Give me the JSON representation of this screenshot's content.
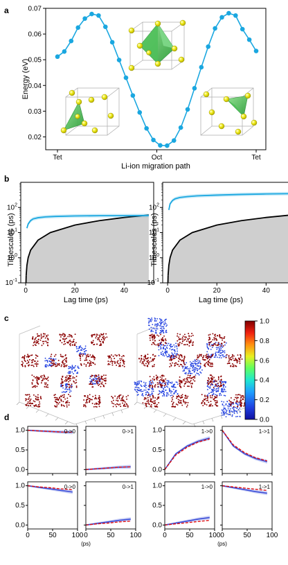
{
  "panels": {
    "a": "a",
    "b": "b",
    "c": "c",
    "d": "d"
  },
  "chart_data": [
    {
      "panel": "a",
      "type": "line",
      "xlabel": "Li-ion migration path",
      "ylabel": "Energy (eV)",
      "ylim": [
        0.015,
        0.07
      ],
      "yticks": [
        "0.02",
        "0.03",
        "0.04",
        "0.05",
        "0.06",
        "0.07"
      ],
      "xticks": [
        "Tet",
        "Oct",
        "Tet"
      ],
      "series": [
        {
          "color": "#1aa7e0",
          "values": [
            0.0512,
            0.0532,
            0.0573,
            0.0625,
            0.066,
            0.0678,
            0.0672,
            0.0628,
            0.0568,
            0.0499,
            0.043,
            0.0361,
            0.0295,
            0.0233,
            0.0188,
            0.0167,
            0.0166,
            0.0186,
            0.0236,
            0.0307,
            0.0389,
            0.0471,
            0.0551,
            0.0622,
            0.0665,
            0.0681,
            0.0672,
            0.0619,
            0.0578,
            0.0534
          ]
        }
      ],
      "insets": [
        "tetrahedral-site-left",
        "octahedral-site",
        "tetrahedral-site-right"
      ]
    },
    {
      "panel": "b-left",
      "type": "line",
      "xlabel": "Lag time (ps)",
      "ylabel": "Timescales (ps)",
      "yscale": "log",
      "ylim": [
        0.1,
        1000
      ],
      "xlim": [
        -2,
        52
      ],
      "xticks": [
        "0",
        "20",
        "40"
      ],
      "yticks": [
        "10^-1",
        "10^0",
        "10^1",
        "10^2"
      ],
      "series": [
        {
          "color": "#1aa7e0",
          "x": [
            0.5,
            1,
            2,
            3,
            5,
            8,
            12,
            20,
            30,
            40,
            50
          ],
          "values": [
            15,
            22,
            30,
            35,
            39,
            42,
            44,
            46,
            47,
            47,
            48
          ]
        },
        {
          "color": "#000000",
          "fill": "#cfcfcf",
          "x": [
            0.2,
            0.5,
            1,
            2,
            5,
            10,
            20,
            30,
            40,
            50
          ],
          "values": [
            0.2,
            0.5,
            1,
            2,
            5,
            10,
            20,
            30,
            40,
            50
          ]
        }
      ]
    },
    {
      "panel": "b-right",
      "type": "line",
      "xlabel": "Lag time (ps)",
      "ylabel": "Timescales (ps)",
      "yscale": "log",
      "ylim": [
        0.1,
        1000
      ],
      "xlim": [
        -2,
        52
      ],
      "xticks": [
        "0",
        "20",
        "40"
      ],
      "yticks": [
        "10^-1",
        "10^0",
        "10^1",
        "10^2"
      ],
      "series": [
        {
          "color": "#1aa7e0",
          "x": [
            0.5,
            1,
            2,
            3,
            5,
            8,
            12,
            20,
            30,
            40,
            50
          ],
          "values": [
            80,
            140,
            190,
            220,
            250,
            270,
            290,
            310,
            330,
            345,
            355
          ]
        },
        {
          "color": "#000000",
          "fill": "#cfcfcf",
          "x": [
            0.2,
            0.5,
            1,
            2,
            5,
            10,
            20,
            30,
            40,
            50
          ],
          "values": [
            0.2,
            0.5,
            1,
            2,
            5,
            10,
            20,
            30,
            40,
            50
          ]
        }
      ]
    },
    {
      "panel": "c",
      "type": "heatmap",
      "colorbar": {
        "min": 0.0,
        "max": 1.0,
        "ticks": [
          "0.0",
          "0.2",
          "0.4",
          "0.6",
          "0.8",
          "1.0"
        ]
      },
      "state_colors": {
        "high": "#8b0000",
        "low": "#1f3fe0"
      }
    },
    {
      "panel": "d",
      "type": "line",
      "xlabel": "(ps)",
      "xticks": [
        "0",
        "50",
        "100"
      ],
      "yticks": [
        "0.0",
        "0.5",
        "1.0"
      ],
      "subplots": [
        {
          "label": "0->0",
          "model": [
            1.0,
            0.985,
            0.97,
            0.955,
            0.95
          ],
          "ref": [
            1.0,
            0.985,
            0.97,
            0.955,
            0.95
          ]
        },
        {
          "label": "0->1",
          "model": [
            0.0,
            0.02,
            0.04,
            0.06,
            0.07
          ],
          "ref": [
            0.0,
            0.02,
            0.04,
            0.06,
            0.07
          ]
        },
        {
          "label": "1->0",
          "model": [
            0.0,
            0.4,
            0.6,
            0.72,
            0.8
          ],
          "ref": [
            0.0,
            0.37,
            0.57,
            0.7,
            0.78
          ]
        },
        {
          "label": "1->1",
          "model": [
            1.0,
            0.6,
            0.4,
            0.28,
            0.2
          ],
          "ref": [
            1.0,
            0.63,
            0.43,
            0.3,
            0.22
          ]
        },
        {
          "label": "0->0",
          "model": [
            1.0,
            0.96,
            0.92,
            0.88,
            0.84
          ],
          "ref": [
            1.0,
            0.97,
            0.95,
            0.92,
            0.9
          ]
        },
        {
          "label": "0->1",
          "model": [
            0.0,
            0.04,
            0.08,
            0.12,
            0.15
          ],
          "ref": [
            0.0,
            0.03,
            0.05,
            0.08,
            0.1
          ]
        },
        {
          "label": "1->0",
          "model": [
            0.0,
            0.05,
            0.1,
            0.15,
            0.19
          ],
          "ref": [
            0.0,
            0.03,
            0.06,
            0.09,
            0.12
          ]
        },
        {
          "label": "1->1",
          "model": [
            1.0,
            0.95,
            0.9,
            0.85,
            0.81
          ],
          "ref": [
            1.0,
            0.97,
            0.94,
            0.91,
            0.88
          ]
        }
      ],
      "x": [
        0,
        22,
        45,
        67,
        90
      ],
      "series_colors": {
        "model": "#3a4bd6",
        "model_band": "#aab4f0",
        "ref": "#e01010"
      }
    }
  ]
}
